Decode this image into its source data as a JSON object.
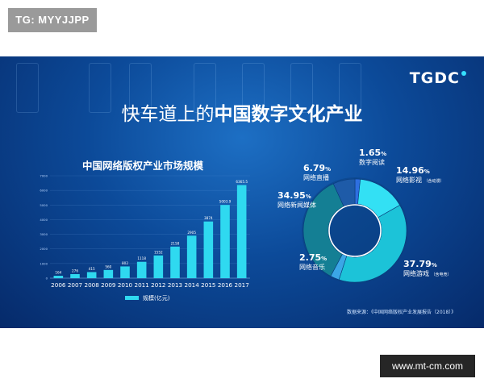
{
  "watermark": "TG: MYYJJPP",
  "footer_url": "www.mt-cm.com",
  "logo": "TGDC",
  "headline_light": "快车道上的",
  "headline_bold": "中国数字文化产业",
  "source_note": "数据来源：《中国网络版权产业发展报告（2018）》",
  "chart_data": [
    {
      "type": "bar",
      "title": "中国网络版权产业市场规模",
      "categories": [
        "2006",
        "2007",
        "2008",
        "2009",
        "2010",
        "2011",
        "2012",
        "2013",
        "2014",
        "2015",
        "2016",
        "2017"
      ],
      "series": [
        {
          "name": "规模(亿元)",
          "color": "#2fd9f0",
          "values": [
            164,
            276,
            415,
            560,
            802,
            1118,
            1552,
            2158,
            2905,
            3874,
            5003.9,
            6365.5
          ]
        }
      ],
      "value_labels": [
        "164",
        "276",
        "415",
        "560",
        "802",
        "1118",
        "1552",
        "2158",
        "2905",
        "3874",
        "5003.9",
        "6365.5"
      ],
      "ylim": [
        0,
        7000
      ],
      "yticks": [
        "0",
        "1000",
        "2000",
        "3000",
        "4000",
        "5000",
        "6000",
        "7000"
      ],
      "grid": true,
      "legend": "bottom"
    },
    {
      "type": "pie",
      "style": "donut",
      "slices": [
        {
          "label": "数字阅读",
          "value": 1.65,
          "pct": "1.65",
          "color": "#2e6fe0"
        },
        {
          "label": "网络影视",
          "sub": "（含动漫）",
          "value": 14.96,
          "pct": "14.96",
          "color": "#33e0f4"
        },
        {
          "label": "网络游戏",
          "sub": "（含电竞）",
          "value": 37.79,
          "pct": "37.79",
          "color": "#1cc3d8"
        },
        {
          "label": "网络音乐",
          "value": 2.75,
          "pct": "2.75",
          "color": "#3ba7e6"
        },
        {
          "label": "网络新闻媒体",
          "value": 34.95,
          "pct": "34.95",
          "color": "#147f94"
        },
        {
          "label": "网络直播",
          "value": 6.79,
          "pct": "6.79",
          "color": "#1e5ba8"
        }
      ]
    }
  ]
}
